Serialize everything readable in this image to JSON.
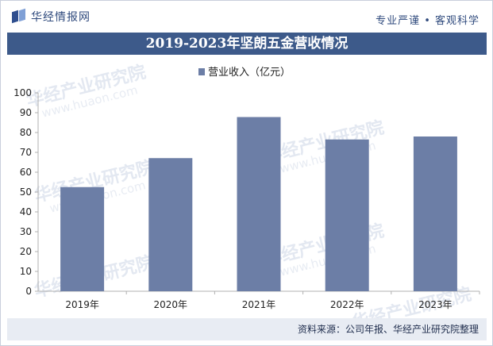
{
  "header": {
    "logo_text": "华经情报网",
    "slogan": "专业严谨 • 客观科学"
  },
  "watermark": {
    "cn": "华经产业研究院",
    "en": "www.huaon.com"
  },
  "footer": {
    "source": "资料来源：公司年报、华经产业研究院整理"
  },
  "colors": {
    "bar": "#6c7ea6",
    "title_bg": "#3d5a8a",
    "footer_bg": "#e8ecf3"
  },
  "chart_data": {
    "type": "bar",
    "title": "2019-2023年坚朗五金营收情况",
    "categories": [
      "2019年",
      "2020年",
      "2021年",
      "2022年",
      "2023年"
    ],
    "series": [
      {
        "name": "营业收入（亿元）",
        "values": [
          52.5,
          67.1,
          87.8,
          76.5,
          78.0
        ]
      }
    ],
    "ylim": [
      0,
      100
    ],
    "yticks": [
      0,
      10,
      20,
      30,
      40,
      50,
      60,
      70,
      80,
      90,
      100
    ],
    "legend_position": "top-center",
    "grid": false
  }
}
